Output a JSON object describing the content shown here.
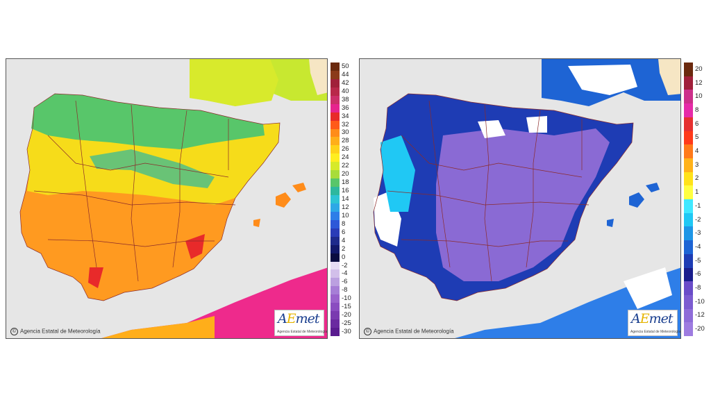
{
  "credit": "Agencia Estatal de Meteorología",
  "logo": {
    "brand_a": "A",
    "brand_e": "E",
    "brand_rest": "met",
    "subtitle": "Agencia Estatal de Meteorología"
  },
  "legend_left": {
    "labels": [
      "50",
      "44",
      "42",
      "40",
      "38",
      "36",
      "34",
      "32",
      "30",
      "28",
      "26",
      "24",
      "22",
      "20",
      "18",
      "16",
      "14",
      "12",
      "10",
      "8",
      "6",
      "4",
      "2",
      "0",
      "-2",
      "-4",
      "-6",
      "-8",
      "-10",
      "-15",
      "-20",
      "-25",
      "-30"
    ],
    "colors": [
      "#6b2a0f",
      "#8b3a1a",
      "#a0203a",
      "#b8284a",
      "#cc2f6a",
      "#e6248e",
      "#e82a2a",
      "#ff5a1a",
      "#ff8c1a",
      "#ffae1a",
      "#ffd21a",
      "#ffee20",
      "#d6ea2a",
      "#a8dc3a",
      "#58c66a",
      "#2eb89e",
      "#2ec4d4",
      "#2ea8e6",
      "#2e7ee8",
      "#2e58d8",
      "#2a3cb8",
      "#1e2a8c",
      "#12186a",
      "#0a0c40",
      "#e6dcf4",
      "#d2bfea",
      "#bba0e0",
      "#a67ed6",
      "#9a62cc",
      "#8a4cc0",
      "#7a3ab0",
      "#6a2aa0",
      "#5a1c90"
    ]
  },
  "legend_right": {
    "labels": [
      "20",
      "12",
      "10",
      "8",
      "6",
      "5",
      "4",
      "3",
      "2",
      "1",
      "-1",
      "-2",
      "-3",
      "-4",
      "-5",
      "-6",
      "-8",
      "-10",
      "-12",
      "-20"
    ],
    "colors": [
      "#6b2a0f",
      "#a0203a",
      "#cc2f8a",
      "#e62aa8",
      "#e63030",
      "#ff3a1a",
      "#ff7a1a",
      "#ffb21a",
      "#ffe21a",
      "#ffff40",
      "#40e8ff",
      "#20c8f4",
      "#1e96e6",
      "#1e64d4",
      "#1e3cb4",
      "#1a1e8c",
      "#6a4cc8",
      "#7c5cd0",
      "#8e6cd8",
      "#9e7ce0"
    ]
  }
}
